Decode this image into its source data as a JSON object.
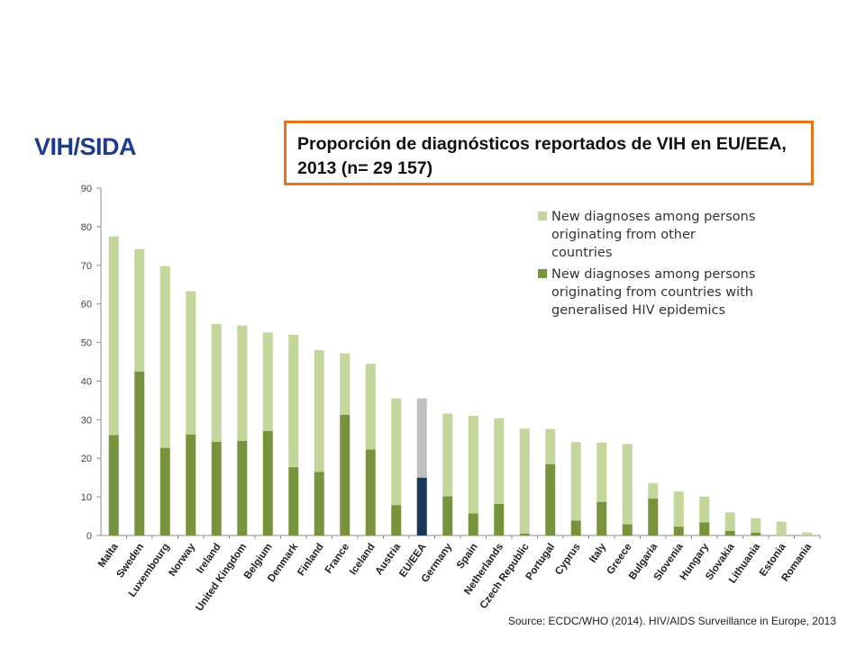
{
  "header": {
    "brand": "VIH/SIDA",
    "title": "Proporción de diagnósticos reportados de VIH en EU/EEA, 2013 (n= 29 157)"
  },
  "source": "Source: ECDC/WHO (2014). HIV/AIDS Surveillance in Europe, 2013",
  "chart_data": {
    "type": "bar",
    "stacked": true,
    "ylim": [
      0,
      90
    ],
    "yticks": [
      0,
      10,
      20,
      30,
      40,
      50,
      60,
      70,
      80,
      90
    ],
    "grid": false,
    "legend_position": "top-right",
    "categories": [
      "Malta",
      "Sweden",
      "Luxembourg",
      "Norway",
      "Ireland",
      "United Kingdom",
      "Belgium",
      "Denmark",
      "Finland",
      "France",
      "Iceland",
      "Austria",
      "EU/EEA",
      "Germany",
      "Spain",
      "Netherlands",
      "Czech Republic",
      "Portugal",
      "Cyprus",
      "Italy",
      "Greece",
      "Bulgaria",
      "Slovenia",
      "Hungary",
      "Slovakia",
      "Lithuania",
      "Estonia",
      "Romania"
    ],
    "highlight_category": "EU/EEA",
    "colors": {
      "generalised": "#77933c",
      "other": "#c3d69b",
      "highlight_generalised": "#17375e",
      "highlight_other": "#bfbfbf"
    },
    "series": [
      {
        "name": "New diagnoses among persons originating from countries with generalised HIV epidemics",
        "values": [
          26,
          42.5,
          22.7,
          26.2,
          24.3,
          24.5,
          27.1,
          17.7,
          16.5,
          31.3,
          22.3,
          7.9,
          15,
          10.2,
          5.7,
          8.2,
          0.5,
          18.5,
          3.9,
          8.7,
          2.9,
          9.6,
          2.3,
          3.4,
          1.2,
          0.7,
          0,
          0
        ]
      },
      {
        "name": "New diagnoses among persons originating from other countries",
        "values": [
          51.5,
          31.7,
          47.1,
          37.1,
          30.5,
          29.9,
          25.5,
          34.3,
          31.5,
          15.9,
          22.2,
          27.6,
          20.5,
          21.4,
          25.3,
          22.2,
          27.2,
          9.1,
          20.3,
          15.4,
          20.8,
          4,
          9.1,
          6.7,
          4.8,
          3.8,
          3.6,
          0.8
        ]
      }
    ]
  }
}
